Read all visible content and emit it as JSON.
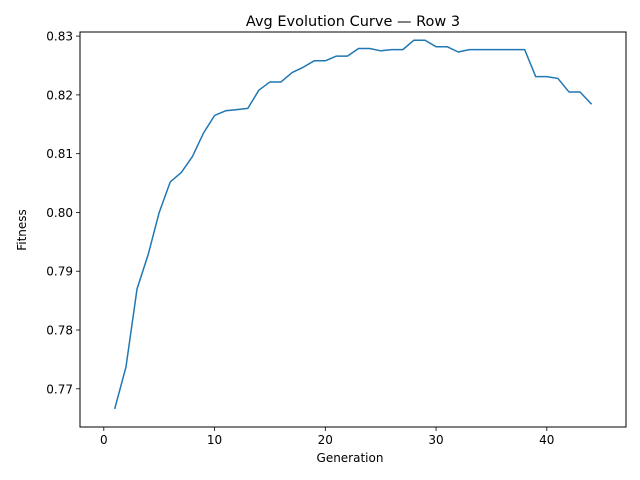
{
  "chart_data": {
    "type": "line",
    "title": "Avg Evolution Curve — Row 3",
    "xlabel": "Generation",
    "ylabel": "Fitness",
    "xlim": [
      -2.15,
      47.15
    ],
    "ylim": [
      0.7635,
      0.8307
    ],
    "xticks": [
      0,
      10,
      20,
      30,
      40
    ],
    "xtick_labels": [
      "0",
      "10",
      "20",
      "30",
      "40"
    ],
    "yticks": [
      0.77,
      0.78,
      0.79,
      0.8,
      0.81,
      0.82,
      0.83
    ],
    "ytick_labels": [
      "0.77",
      "0.78",
      "0.79",
      "0.80",
      "0.81",
      "0.82",
      "0.83"
    ],
    "grid": false,
    "color": "#1f77b4",
    "x": [
      1,
      2,
      3,
      4,
      5,
      6,
      7,
      8,
      9,
      10,
      11,
      12,
      13,
      14,
      15,
      16,
      17,
      18,
      19,
      20,
      21,
      22,
      23,
      24,
      25,
      26,
      27,
      28,
      29,
      30,
      31,
      32,
      33,
      34,
      35,
      36,
      37,
      38,
      39,
      40,
      41,
      42,
      43,
      44
    ],
    "values": [
      0.7667,
      0.7737,
      0.787,
      0.7928,
      0.8,
      0.8052,
      0.8068,
      0.8095,
      0.8135,
      0.8165,
      0.8173,
      0.8175,
      0.8177,
      0.8208,
      0.8222,
      0.8222,
      0.8238,
      0.8247,
      0.8258,
      0.8258,
      0.8266,
      0.8266,
      0.8279,
      0.8279,
      0.8275,
      0.8277,
      0.8277,
      0.8293,
      0.8293,
      0.8282,
      0.8282,
      0.8273,
      0.8277,
      0.8277,
      0.8277,
      0.8277,
      0.8277,
      0.8277,
      0.8231,
      0.8231,
      0.8228,
      0.8205,
      0.8205,
      0.8185
    ]
  }
}
